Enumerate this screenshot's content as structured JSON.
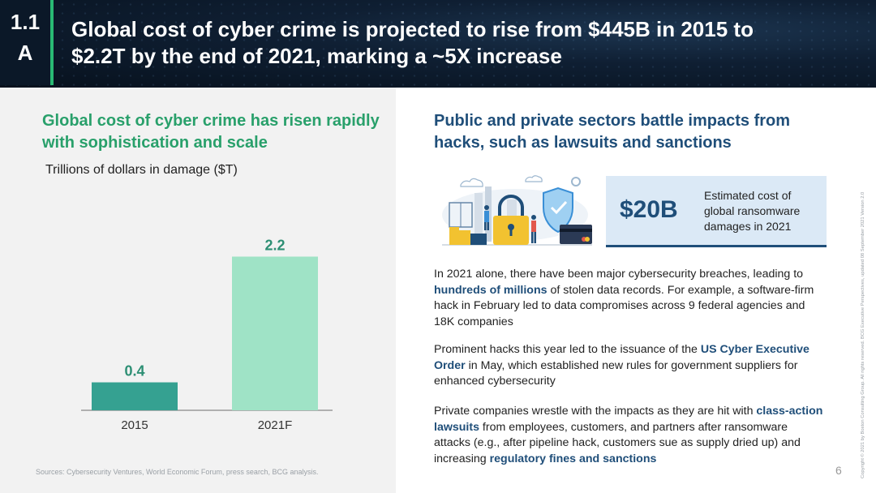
{
  "header": {
    "section_line1": "1.1",
    "section_line2": "A",
    "title": "Global cost of cyber crime is projected to rise from $445B in 2015 to $2.2T by the end of 2021, marking a ~5X increase"
  },
  "left": {
    "heading": "Global cost of cyber crime has risen rapidly with sophistication and scale",
    "unit_label": "Trillions of dollars in damage ($T)",
    "source": "Sources: Cybersecurity Ventures, World Economic Forum, press search, BCG analysis."
  },
  "chart_data": {
    "type": "bar",
    "categories": [
      "2015",
      "2021F"
    ],
    "values": [
      0.4,
      2.2
    ],
    "data_labels": [
      "0.4",
      "2.2"
    ],
    "ylabel": "Trillions of dollars in damage ($T)",
    "ylim": [
      0,
      2.6
    ],
    "colors": [
      "#35a191",
      "#9fe3c6"
    ],
    "label_color": "#2d8f74",
    "grid": false
  },
  "right": {
    "heading": "Public and private sectors battle impacts from hacks, such as lawsuits and sanctions",
    "stat_value": "$20B",
    "stat_desc": "Estimated cost of global ransomware damages in 2021",
    "illustration_icon": "cybersecurity-illustration-icon",
    "p1": {
      "pre": "In 2021 alone, there have been major cybersecurity breaches, leading to ",
      "bold": "hundreds of millions",
      "post": " of stolen data records. For example, a software-firm hack in February led to data compromises across 9 federal agencies and 18K companies"
    },
    "p2": {
      "pre": "Prominent hacks this year led to the issuance of the ",
      "bold": "US Cyber Executive Order",
      "post": " in May, which established new rules for government suppliers for enhanced cybersecurity"
    },
    "p3": {
      "pre": "Private companies wrestle with the impacts as they are hit with ",
      "bold1": "class-action lawsuits",
      "mid": " from employees, customers, and partners after ransomware attacks (e.g., after pipeline hack, customers sue as supply dried up) and increasing ",
      "bold2": "regulatory fines and sanctions"
    }
  },
  "footer": {
    "page_number": "6",
    "copyright": "Copyright © 2021 by Boston Consulting Group. All rights reserved. BCG Executive Perspectives, updated 08 September 2021 Version 2.0"
  },
  "colors": {
    "accent_green": "#29a06b",
    "navy": "#1f4e79",
    "stat_box_bg": "#dbe9f6"
  }
}
